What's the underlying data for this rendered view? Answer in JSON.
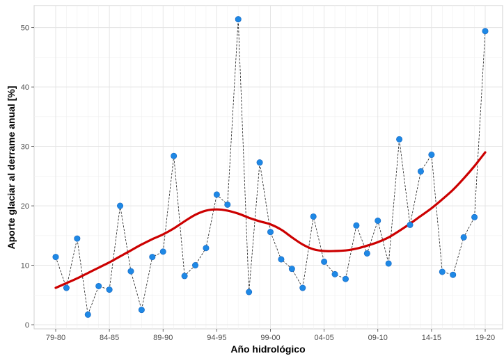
{
  "chart_data": {
    "type": "line",
    "xlabel": "Año hidrológico",
    "ylabel": "Aporte glaciar al derrame anual [%]",
    "ylim": [
      -0.7,
      53.7
    ],
    "yticks": [
      0,
      10,
      20,
      30,
      40,
      50
    ],
    "grid": true,
    "legend": "none",
    "x_tick_labels": [
      "79-80",
      "84-85",
      "89-90",
      "94-95",
      "99-00",
      "04-05",
      "09-10",
      "14-15",
      "19-20"
    ],
    "x_tick_index": [
      0,
      5,
      10,
      15,
      20,
      25,
      30,
      35,
      40
    ],
    "categories": [
      "79-80",
      "80-81",
      "81-82",
      "82-83",
      "83-84",
      "84-85",
      "85-86",
      "86-87",
      "87-88",
      "88-89",
      "89-90",
      "90-91",
      "91-92",
      "92-93",
      "93-94",
      "94-95",
      "95-96",
      "96-97",
      "97-98",
      "98-99",
      "99-00",
      "00-01",
      "01-02",
      "02-03",
      "03-04",
      "04-05",
      "05-06",
      "06-07",
      "07-08",
      "08-09",
      "09-10",
      "10-11",
      "11-12",
      "12-13",
      "13-14",
      "14-15",
      "15-16",
      "16-17",
      "17-18",
      "18-19",
      "19-20"
    ],
    "series": [
      {
        "style": "points-dashed",
        "color": "#1e88e5",
        "values": [
          11.4,
          6.2,
          14.5,
          1.7,
          6.5,
          5.9,
          20.0,
          9.0,
          2.5,
          11.4,
          12.3,
          28.4,
          8.2,
          10.0,
          12.9,
          21.9,
          20.2,
          51.4,
          5.5,
          27.3,
          15.6,
          11.0,
          9.4,
          6.2,
          18.2,
          10.6,
          8.5,
          7.7,
          16.7,
          12.0,
          17.5,
          10.3,
          31.2,
          16.8,
          25.8,
          28.6,
          8.9,
          8.4,
          14.7,
          18.1,
          49.4
        ]
      },
      {
        "style": "smooth-trend",
        "color": "#cc0000",
        "values": [
          6.2,
          7.0,
          7.8,
          8.7,
          9.6,
          10.5,
          11.5,
          12.5,
          13.5,
          14.4,
          15.2,
          16.2,
          17.4,
          18.5,
          19.2,
          19.4,
          19.2,
          18.7,
          18.0,
          17.4,
          16.9,
          16.0,
          14.7,
          13.5,
          12.7,
          12.4,
          12.4,
          12.5,
          12.8,
          13.3,
          13.9,
          14.7,
          15.8,
          17.0,
          18.3,
          19.6,
          21.1,
          22.7,
          24.6,
          26.7,
          29.0
        ]
      }
    ]
  }
}
